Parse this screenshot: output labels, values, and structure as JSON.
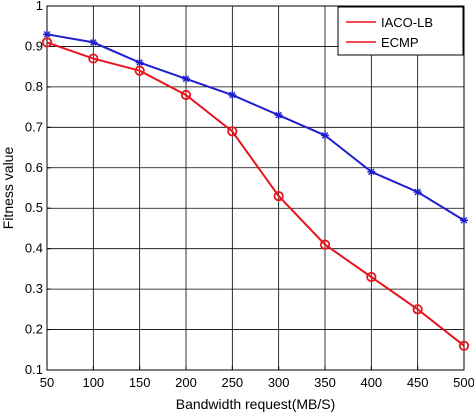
{
  "chart_data": {
    "type": "line",
    "x": [
      50,
      100,
      150,
      200,
      250,
      300,
      350,
      400,
      450,
      500
    ],
    "xlabel": "Bandwidth request(MB/S)",
    "ylabel": "Fitness value",
    "xlim": [
      50,
      500
    ],
    "ylim": [
      0.1,
      1
    ],
    "xticks": [
      "50",
      "100",
      "150",
      "200",
      "250",
      "300",
      "350",
      "400",
      "450",
      "500"
    ],
    "yticks": [
      "0.1",
      "0.2",
      "0.3",
      "0.4",
      "0.5",
      "0.6",
      "0.7",
      "0.8",
      "0.9",
      "1"
    ],
    "grid": true,
    "legend_position": "top-right",
    "series": [
      {
        "name": "IACO-LB",
        "color": "#1f1fcc",
        "marker": "star",
        "legend_color": "#e8141e",
        "values": [
          0.93,
          0.91,
          0.86,
          0.82,
          0.78,
          0.73,
          0.68,
          0.59,
          0.54,
          0.47
        ]
      },
      {
        "name": "ECMP",
        "color": "#e8141e",
        "marker": "circle",
        "legend_color": "#e8141e",
        "values": [
          0.91,
          0.87,
          0.84,
          0.78,
          0.69,
          0.53,
          0.41,
          0.33,
          0.25,
          0.16
        ]
      }
    ]
  }
}
